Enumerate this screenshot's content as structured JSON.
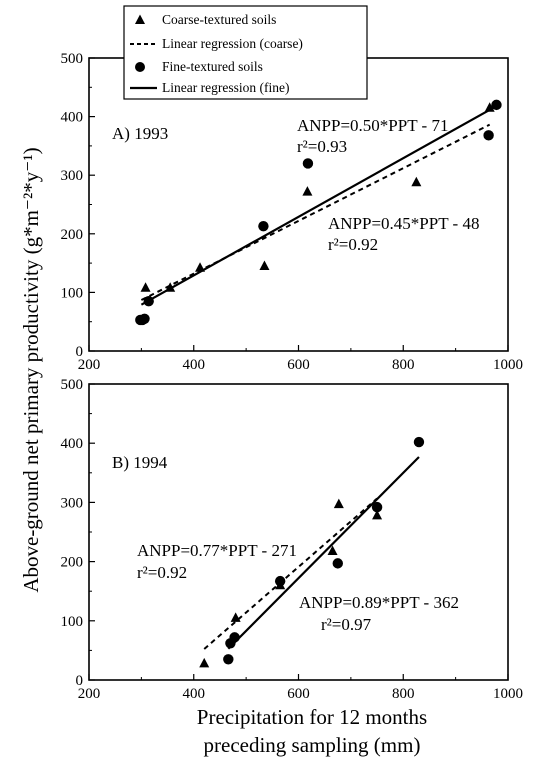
{
  "chart_data": {
    "type": "scatter",
    "ylabel": "Above-ground net primary productivity (g*m⁻²*y⁻¹)",
    "xlabel_line1": "Precipitation for 12 months",
    "xlabel_line2": "preceding sampling (mm)",
    "legend": {
      "coarse": "Coarse-textured soils",
      "coarse_reg": "Linear regression (coarse)",
      "fine": "Fine-textured soils",
      "fine_reg": "Linear regression (fine)"
    },
    "panels": [
      {
        "label": "A) 1993",
        "xlim": [
          200,
          1000
        ],
        "ylim": [
          0,
          500
        ],
        "xticks": [
          200,
          400,
          600,
          800,
          1000
        ],
        "yticks": [
          0,
          100,
          200,
          300,
          400,
          500
        ],
        "coarse": [
          [
            308,
            108
          ],
          [
            355,
            108
          ],
          [
            412,
            142
          ],
          [
            535,
            145
          ],
          [
            617,
            272
          ],
          [
            825,
            288
          ],
          [
            965,
            415
          ]
        ],
        "fine": [
          [
            298,
            53
          ],
          [
            302,
            53
          ],
          [
            306,
            55
          ],
          [
            314,
            85
          ],
          [
            533,
            213
          ],
          [
            618,
            320
          ],
          [
            963,
            368
          ],
          [
            978,
            420
          ]
        ],
        "coarse_line": {
          "slope": 0.45,
          "intercept": -48,
          "x": [
            300,
            965
          ]
        },
        "fine_line": {
          "slope": 0.5,
          "intercept": -71,
          "x": [
            300,
            978
          ]
        },
        "fine_eq": "ANPP=0.50*PPT - 71",
        "fine_r2": "r²=0.93",
        "coarse_eq": "ANPP=0.45*PPT - 48",
        "coarse_r2": "r²=0.92"
      },
      {
        "label": "B) 1994",
        "xlim": [
          200,
          1000
        ],
        "ylim": [
          0,
          500
        ],
        "xticks": [
          200,
          400,
          600,
          800,
          1000
        ],
        "yticks": [
          0,
          100,
          200,
          300,
          400,
          500
        ],
        "coarse": [
          [
            420,
            28
          ],
          [
            480,
            105
          ],
          [
            565,
            160
          ],
          [
            665,
            218
          ],
          [
            677,
            297
          ],
          [
            750,
            278
          ]
        ],
        "fine": [
          [
            466,
            35
          ],
          [
            470,
            62
          ],
          [
            478,
            72
          ],
          [
            565,
            167
          ],
          [
            675,
            197
          ],
          [
            750,
            292
          ],
          [
            830,
            402
          ]
        ],
        "coarse_line": {
          "slope": 0.77,
          "intercept": -271,
          "x": [
            420,
            750
          ]
        },
        "fine_line": {
          "slope": 0.89,
          "intercept": -362,
          "x": [
            466,
            830
          ]
        },
        "coarse_eq": "ANPP=0.77*PPT - 271",
        "coarse_r2": "r²=0.92",
        "fine_eq": "ANPP=0.89*PPT - 362",
        "fine_r2": "r²=0.97"
      }
    ]
  }
}
